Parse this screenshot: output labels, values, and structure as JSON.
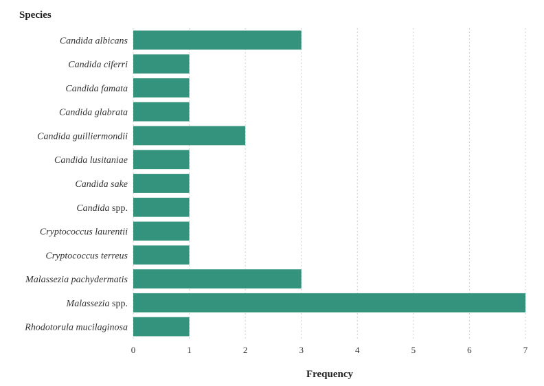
{
  "chart_data": {
    "type": "bar",
    "orientation": "horizontal",
    "ylabel": "Species",
    "xlabel": "Frequency",
    "xlim": [
      0,
      7
    ],
    "xticks": [
      0,
      1,
      2,
      3,
      4,
      5,
      6,
      7
    ],
    "grid": "vertical dotted",
    "bar_color": "#34937d",
    "categories": [
      "Candida albicans",
      "Candida ciferri",
      "Candida famata",
      "Candida glabrata",
      "Candida guilliermondii",
      "Candida lusitaniae",
      "Candida sake",
      "Candida spp.",
      "Cryptococcus laurentii",
      "Cryptococcus terreus",
      "Malassezia pachydermatis",
      "Malassezia spp.",
      "Rhodotorula mucilaginosa"
    ],
    "values": [
      3,
      1,
      1,
      1,
      2,
      1,
      1,
      1,
      1,
      1,
      3,
      7,
      1
    ]
  }
}
